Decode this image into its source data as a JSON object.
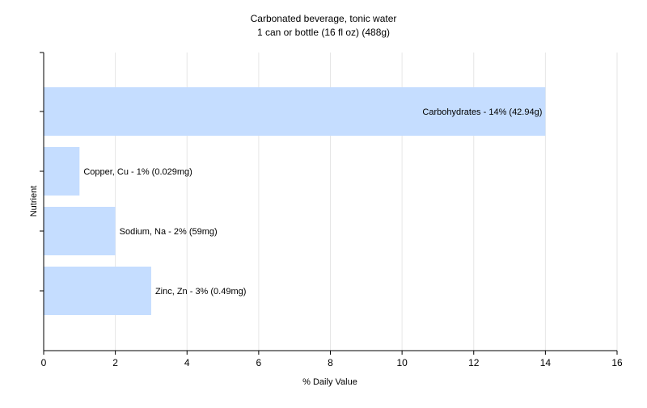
{
  "chart_data": {
    "type": "bar",
    "orientation": "horizontal",
    "title": "Carbonated beverage, tonic water",
    "subtitle": "1 can or bottle (16 fl oz) (488g)",
    "xlabel": "% Daily Value",
    "ylabel": "Nutrient",
    "xlim": [
      0,
      16
    ],
    "xticks": [
      0,
      2,
      4,
      6,
      8,
      10,
      12,
      14,
      16
    ],
    "grid": true,
    "bar_color": "#c5ddff",
    "bars": [
      {
        "category": "Carbohydrates",
        "value": 14,
        "label": "Carbohydrates - 14% (42.94g)"
      },
      {
        "category": "Copper, Cu",
        "value": 1,
        "label": "Copper, Cu - 1% (0.029mg)"
      },
      {
        "category": "Sodium, Na",
        "value": 2,
        "label": "Sodium, Na - 2% (59mg)"
      },
      {
        "category": "Zinc, Zn",
        "value": 3,
        "label": "Zinc, Zn - 3% (0.49mg)"
      }
    ]
  }
}
